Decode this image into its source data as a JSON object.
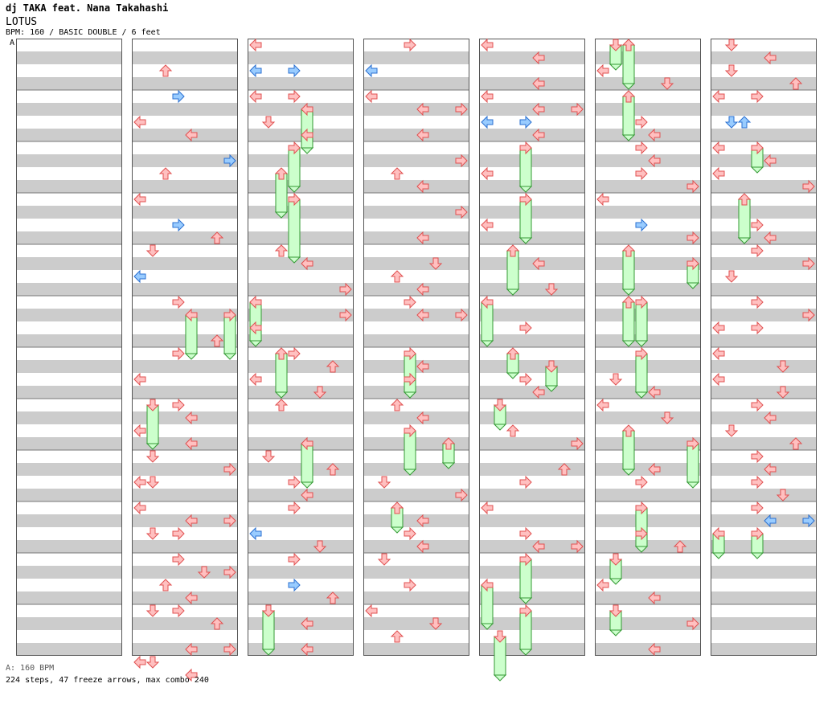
{
  "header": {
    "artist": "dj TAKA feat. Nana Takahashi",
    "song": "LOTUS",
    "info": "BPM: 160 / BASIC DOUBLE / 6 feet",
    "bpm_marker": "A"
  },
  "footer": {
    "bpm_legend": "A: 160 BPM",
    "stats": "224 steps, 47 freeze arrows, max combo 240"
  },
  "colors": {
    "stripe": "#cccccc",
    "quarter_fill": "#ffc0c0",
    "quarter_stroke": "#e05050",
    "eighth_fill": "#99ccff",
    "eighth_stroke": "#2a6fd0",
    "freeze_fill": "#ccffcc",
    "freeze_stroke": "#339933",
    "bpm_line": "#4aa3ff"
  },
  "notes": [
    {
      "c": 1,
      "t": 2,
      "d": "up",
      "k": "q"
    },
    {
      "c": 1,
      "t": 4,
      "d": "right",
      "k": "e"
    },
    {
      "c": 1,
      "t": 6,
      "d": "left",
      "k": "q"
    },
    {
      "c": 1,
      "t": 7,
      "d": "left",
      "k": "q"
    },
    {
      "c": 1,
      "t": 9,
      "d": "right",
      "k": "e"
    },
    {
      "c": 1,
      "t": 10,
      "d": "up",
      "k": "q"
    },
    {
      "c": 1,
      "t": 12,
      "d": "left",
      "k": "q"
    },
    {
      "c": 1,
      "t": 14,
      "d": "right",
      "k": "e"
    },
    {
      "c": 1,
      "t": 15,
      "d": "up",
      "k": "q"
    },
    {
      "c": 1,
      "t": 16,
      "d": "down",
      "k": "q"
    },
    {
      "c": 1,
      "t": 18,
      "d": "left",
      "k": "e"
    },
    {
      "c": 1,
      "t": 20,
      "d": "right",
      "k": "q"
    },
    {
      "c": 1,
      "t": 21,
      "d": "left",
      "k": "f",
      "len": 2
    },
    {
      "c": 1,
      "t": 21,
      "d": "right",
      "k": "f",
      "len": 2
    },
    {
      "c": 1,
      "t": 23,
      "d": "up",
      "k": "q"
    },
    {
      "c": 1,
      "t": 24,
      "d": "right",
      "k": "q"
    },
    {
      "c": 1,
      "t": 26,
      "d": "left",
      "k": "q"
    },
    {
      "c": 1,
      "t": 28,
      "d": "right",
      "k": "q"
    },
    {
      "c": 1,
      "t": 28,
      "d": "down",
      "k": "f",
      "len": 2
    },
    {
      "c": 1,
      "t": 29,
      "d": "left",
      "k": "q"
    },
    {
      "c": 1,
      "t": 30,
      "d": "left",
      "k": "q"
    },
    {
      "c": 1,
      "t": 31,
      "d": "left",
      "k": "q"
    },
    {
      "c": 1,
      "t": 32,
      "d": "down",
      "k": "q"
    },
    {
      "c": 1,
      "t": 33,
      "d": "right",
      "k": "q"
    },
    {
      "c": 1,
      "t": 34,
      "d": "down",
      "k": "q"
    },
    {
      "c": 1,
      "t": 34,
      "d": "left",
      "k": "q"
    },
    {
      "c": 1,
      "t": 36,
      "d": "left",
      "k": "q"
    },
    {
      "c": 1,
      "t": 37,
      "d": "right",
      "k": "q"
    },
    {
      "c": 1,
      "t": 37,
      "d": "left",
      "k": "q"
    },
    {
      "c": 1,
      "t": 38,
      "d": "down",
      "k": "q"
    },
    {
      "c": 1,
      "t": 38,
      "d": "right",
      "k": "q"
    },
    {
      "c": 1,
      "t": 40,
      "d": "right",
      "k": "q"
    },
    {
      "c": 1,
      "t": 41,
      "d": "down",
      "k": "q"
    },
    {
      "c": 1,
      "t": 41,
      "d": "right",
      "k": "q"
    },
    {
      "c": 1,
      "t": 42,
      "d": "up",
      "k": "q"
    },
    {
      "c": 1,
      "t": 43,
      "d": "left",
      "k": "q"
    },
    {
      "c": 1,
      "t": 44,
      "d": "down",
      "k": "q"
    },
    {
      "c": 1,
      "t": 44,
      "d": "right",
      "k": "q"
    },
    {
      "c": 1,
      "t": 45,
      "d": "up",
      "k": "q"
    },
    {
      "c": 1,
      "t": 47,
      "d": "left",
      "k": "q"
    },
    {
      "c": 1,
      "t": 47,
      "d": "right",
      "k": "q"
    },
    {
      "c": 1,
      "t": 48,
      "d": "down",
      "k": "q"
    },
    {
      "c": 1,
      "t": 48,
      "d": "left",
      "k": "q"
    },
    {
      "c": 1,
      "t": 49,
      "d": "left",
      "k": "q"
    },
    {
      "c": 2,
      "t": 0,
      "d": "left",
      "k": "q"
    },
    {
      "c": 2,
      "t": 2,
      "d": "right",
      "k": "e"
    },
    {
      "c": 2,
      "t": 2,
      "d": "left",
      "k": "e"
    },
    {
      "c": 2,
      "t": 4,
      "d": "right",
      "k": "q"
    },
    {
      "c": 2,
      "t": 4,
      "d": "left",
      "k": "q"
    },
    {
      "c": 2,
      "t": 5,
      "d": "left",
      "k": "f",
      "len": 2
    },
    {
      "c": 2,
      "t": 6,
      "d": "down",
      "k": "q"
    },
    {
      "c": 2,
      "t": 7,
      "d": "left",
      "k": "q"
    },
    {
      "c": 2,
      "t": 8,
      "d": "right",
      "k": "f",
      "len": 2
    },
    {
      "c": 2,
      "t": 10,
      "d": "up",
      "k": "f",
      "len": 2
    },
    {
      "c": 2,
      "t": 12,
      "d": "right",
      "k": "f",
      "len": 3
    },
    {
      "c": 2,
      "t": 16,
      "d": "up",
      "k": "q"
    },
    {
      "c": 2,
      "t": 17,
      "d": "left",
      "k": "q"
    },
    {
      "c": 2,
      "t": 19,
      "d": "right",
      "k": "q"
    },
    {
      "c": 2,
      "t": 20,
      "d": "left",
      "k": "f",
      "len": 2
    },
    {
      "c": 2,
      "t": 21,
      "d": "right",
      "k": "q"
    },
    {
      "c": 2,
      "t": 22,
      "d": "left",
      "k": "q"
    },
    {
      "c": 2,
      "t": 24,
      "d": "up",
      "k": "f",
      "len": 2
    },
    {
      "c": 2,
      "t": 24,
      "d": "right",
      "k": "q"
    },
    {
      "c": 2,
      "t": 25,
      "d": "up",
      "k": "q"
    },
    {
      "c": 2,
      "t": 26,
      "d": "left",
      "k": "q"
    },
    {
      "c": 2,
      "t": 27,
      "d": "down",
      "k": "q"
    },
    {
      "c": 2,
      "t": 28,
      "d": "up",
      "k": "q"
    },
    {
      "c": 2,
      "t": 31,
      "d": "left",
      "k": "f",
      "len": 2
    },
    {
      "c": 2,
      "t": 32,
      "d": "down",
      "k": "q"
    },
    {
      "c": 2,
      "t": 33,
      "d": "up",
      "k": "q"
    },
    {
      "c": 2,
      "t": 34,
      "d": "right",
      "k": "q"
    },
    {
      "c": 2,
      "t": 35,
      "d": "left",
      "k": "q"
    },
    {
      "c": 2,
      "t": 36,
      "d": "right",
      "k": "q"
    },
    {
      "c": 2,
      "t": 38,
      "d": "left",
      "k": "e"
    },
    {
      "c": 2,
      "t": 39,
      "d": "down",
      "k": "q"
    },
    {
      "c": 2,
      "t": 40,
      "d": "right",
      "k": "q"
    },
    {
      "c": 2,
      "t": 42,
      "d": "right",
      "k": "e"
    },
    {
      "c": 2,
      "t": 43,
      "d": "up",
      "k": "q"
    },
    {
      "c": 2,
      "t": 44,
      "d": "down",
      "k": "f",
      "len": 2
    },
    {
      "c": 2,
      "t": 45,
      "d": "left",
      "k": "q"
    },
    {
      "c": 2,
      "t": 47,
      "d": "left",
      "k": "q"
    },
    {
      "c": 3,
      "t": 0,
      "d": "right",
      "k": "q"
    },
    {
      "c": 3,
      "t": 2,
      "d": "left",
      "k": "e"
    },
    {
      "c": 3,
      "t": 4,
      "d": "left",
      "k": "q"
    },
    {
      "c": 3,
      "t": 5,
      "d": "right",
      "k": "q"
    },
    {
      "c": 3,
      "t": 5,
      "d": "left",
      "k": "q"
    },
    {
      "c": 3,
      "t": 7,
      "d": "left",
      "k": "q"
    },
    {
      "c": 3,
      "t": 9,
      "d": "right",
      "k": "q"
    },
    {
      "c": 3,
      "t": 10,
      "d": "up",
      "k": "q"
    },
    {
      "c": 3,
      "t": 11,
      "d": "left",
      "k": "q"
    },
    {
      "c": 3,
      "t": 13,
      "d": "right",
      "k": "q"
    },
    {
      "c": 3,
      "t": 15,
      "d": "left",
      "k": "q"
    },
    {
      "c": 3,
      "t": 17,
      "d": "down",
      "k": "q"
    },
    {
      "c": 3,
      "t": 18,
      "d": "up",
      "k": "q"
    },
    {
      "c": 3,
      "t": 19,
      "d": "left",
      "k": "q"
    },
    {
      "c": 3,
      "t": 20,
      "d": "right",
      "k": "q"
    },
    {
      "c": 3,
      "t": 21,
      "d": "right",
      "k": "q"
    },
    {
      "c": 3,
      "t": 21,
      "d": "left",
      "k": "q"
    },
    {
      "c": 3,
      "t": 24,
      "d": "right",
      "k": "f",
      "len": 2
    },
    {
      "c": 3,
      "t": 25,
      "d": "left",
      "k": "q"
    },
    {
      "c": 3,
      "t": 26,
      "d": "right",
      "k": "q"
    },
    {
      "c": 3,
      "t": 28,
      "d": "up",
      "k": "q"
    },
    {
      "c": 3,
      "t": 29,
      "d": "left",
      "k": "q"
    },
    {
      "c": 3,
      "t": 30,
      "d": "right",
      "k": "f",
      "len": 2
    },
    {
      "c": 3,
      "t": 31,
      "d": "up",
      "k": "f",
      "len": 1
    },
    {
      "c": 3,
      "t": 34,
      "d": "down",
      "k": "q"
    },
    {
      "c": 3,
      "t": 35,
      "d": "right",
      "k": "q"
    },
    {
      "c": 3,
      "t": 36,
      "d": "up",
      "k": "f",
      "len": 1
    },
    {
      "c": 3,
      "t": 37,
      "d": "left",
      "k": "q"
    },
    {
      "c": 3,
      "t": 38,
      "d": "right",
      "k": "q"
    },
    {
      "c": 3,
      "t": 39,
      "d": "left",
      "k": "q"
    },
    {
      "c": 3,
      "t": 40,
      "d": "down",
      "k": "q"
    },
    {
      "c": 3,
      "t": 42,
      "d": "right",
      "k": "q"
    },
    {
      "c": 3,
      "t": 44,
      "d": "left",
      "k": "q"
    },
    {
      "c": 3,
      "t": 45,
      "d": "down",
      "k": "q"
    },
    {
      "c": 3,
      "t": 46,
      "d": "up",
      "k": "q"
    },
    {
      "c": 4,
      "t": 0,
      "d": "left",
      "k": "q"
    },
    {
      "c": 4,
      "t": 1,
      "d": "left",
      "k": "q"
    },
    {
      "c": 4,
      "t": 3,
      "d": "left",
      "k": "q"
    },
    {
      "c": 4,
      "t": 4,
      "d": "left",
      "k": "q"
    },
    {
      "c": 4,
      "t": 5,
      "d": "right",
      "k": "q"
    },
    {
      "c": 4,
      "t": 5,
      "d": "left",
      "k": "q"
    },
    {
      "c": 4,
      "t": 6,
      "d": "right",
      "k": "e"
    },
    {
      "c": 4,
      "t": 6,
      "d": "left",
      "k": "e"
    },
    {
      "c": 4,
      "t": 7,
      "d": "left",
      "k": "q"
    },
    {
      "c": 4,
      "t": 8,
      "d": "right",
      "k": "f",
      "len": 2
    },
    {
      "c": 4,
      "t": 10,
      "d": "left",
      "k": "q"
    },
    {
      "c": 4,
      "t": 12,
      "d": "right",
      "k": "f",
      "len": 2
    },
    {
      "c": 4,
      "t": 14,
      "d": "left",
      "k": "q"
    },
    {
      "c": 4,
      "t": 16,
      "d": "up",
      "k": "f",
      "len": 2
    },
    {
      "c": 4,
      "t": 17,
      "d": "left",
      "k": "q"
    },
    {
      "c": 4,
      "t": 19,
      "d": "down",
      "k": "q"
    },
    {
      "c": 4,
      "t": 20,
      "d": "left",
      "k": "f",
      "len": 2
    },
    {
      "c": 4,
      "t": 22,
      "d": "right",
      "k": "q"
    },
    {
      "c": 4,
      "t": 24,
      "d": "up",
      "k": "f",
      "len": 1
    },
    {
      "c": 4,
      "t": 25,
      "d": "down",
      "k": "f",
      "len": 1
    },
    {
      "c": 4,
      "t": 26,
      "d": "right",
      "k": "q"
    },
    {
      "c": 4,
      "t": 27,
      "d": "left",
      "k": "q"
    },
    {
      "c": 4,
      "t": 28,
      "d": "down",
      "k": "f",
      "len": 1
    },
    {
      "c": 4,
      "t": 30,
      "d": "up",
      "k": "q"
    },
    {
      "c": 4,
      "t": 31,
      "d": "right",
      "k": "q"
    },
    {
      "c": 4,
      "t": 33,
      "d": "up",
      "k": "q"
    },
    {
      "c": 4,
      "t": 34,
      "d": "right",
      "k": "q"
    },
    {
      "c": 4,
      "t": 36,
      "d": "left",
      "k": "q"
    },
    {
      "c": 4,
      "t": 38,
      "d": "right",
      "k": "q"
    },
    {
      "c": 4,
      "t": 39,
      "d": "right",
      "k": "q"
    },
    {
      "c": 4,
      "t": 39,
      "d": "left",
      "k": "q"
    },
    {
      "c": 4,
      "t": 40,
      "d": "right",
      "k": "f",
      "len": 2
    },
    {
      "c": 4,
      "t": 42,
      "d": "left",
      "k": "f",
      "len": 2
    },
    {
      "c": 4,
      "t": 44,
      "d": "right",
      "k": "f",
      "len": 2
    },
    {
      "c": 4,
      "t": 46,
      "d": "down",
      "k": "f",
      "len": 2
    },
    {
      "c": 5,
      "t": 0,
      "d": "down",
      "k": "f",
      "len": 0
    },
    {
      "c": 5,
      "t": 0,
      "d": "up",
      "k": "f",
      "len": 2
    },
    {
      "c": 5,
      "t": 2,
      "d": "left",
      "k": "q"
    },
    {
      "c": 5,
      "t": 3,
      "d": "down",
      "k": "q"
    },
    {
      "c": 5,
      "t": 4,
      "d": "up",
      "k": "f",
      "len": 2
    },
    {
      "c": 5,
      "t": 6,
      "d": "right",
      "k": "q"
    },
    {
      "c": 5,
      "t": 7,
      "d": "left",
      "k": "q"
    },
    {
      "c": 5,
      "t": 8,
      "d": "right",
      "k": "q"
    },
    {
      "c": 5,
      "t": 9,
      "d": "left",
      "k": "q"
    },
    {
      "c": 5,
      "t": 10,
      "d": "right",
      "k": "q"
    },
    {
      "c": 5,
      "t": 11,
      "d": "right",
      "k": "q"
    },
    {
      "c": 5,
      "t": 12,
      "d": "left",
      "k": "q"
    },
    {
      "c": 5,
      "t": 14,
      "d": "right",
      "k": "e"
    },
    {
      "c": 5,
      "t": 15,
      "d": "right",
      "k": "q"
    },
    {
      "c": 5,
      "t": 16,
      "d": "up",
      "k": "f",
      "len": 2
    },
    {
      "c": 5,
      "t": 17,
      "d": "right",
      "k": "f",
      "len": 1
    },
    {
      "c": 5,
      "t": 20,
      "d": "up",
      "k": "f",
      "len": 2
    },
    {
      "c": 5,
      "t": 20,
      "d": "right",
      "k": "f",
      "len": 2
    },
    {
      "c": 5,
      "t": 24,
      "d": "right",
      "k": "f",
      "len": 2
    },
    {
      "c": 5,
      "t": 26,
      "d": "down",
      "k": "q"
    },
    {
      "c": 5,
      "t": 27,
      "d": "left",
      "k": "q"
    },
    {
      "c": 5,
      "t": 28,
      "d": "left",
      "k": "q"
    },
    {
      "c": 5,
      "t": 29,
      "d": "down",
      "k": "q"
    },
    {
      "c": 5,
      "t": 30,
      "d": "up",
      "k": "f",
      "len": 2
    },
    {
      "c": 5,
      "t": 31,
      "d": "right",
      "k": "f",
      "len": 2
    },
    {
      "c": 5,
      "t": 33,
      "d": "left",
      "k": "q"
    },
    {
      "c": 5,
      "t": 34,
      "d": "right",
      "k": "q"
    },
    {
      "c": 5,
      "t": 36,
      "d": "right",
      "k": "f",
      "len": 2
    },
    {
      "c": 5,
      "t": 38,
      "d": "right",
      "k": "q"
    },
    {
      "c": 5,
      "t": 39,
      "d": "up",
      "k": "q"
    },
    {
      "c": 5,
      "t": 40,
      "d": "down",
      "k": "f",
      "len": 1
    },
    {
      "c": 5,
      "t": 42,
      "d": "left",
      "k": "q"
    },
    {
      "c": 5,
      "t": 43,
      "d": "left",
      "k": "q"
    },
    {
      "c": 5,
      "t": 44,
      "d": "down",
      "k": "f",
      "len": 1
    },
    {
      "c": 5,
      "t": 45,
      "d": "right",
      "k": "q"
    },
    {
      "c": 5,
      "t": 47,
      "d": "left",
      "k": "q"
    },
    {
      "c": 6,
      "t": 0,
      "d": "down",
      "k": "q"
    },
    {
      "c": 6,
      "t": 1,
      "d": "left",
      "k": "q"
    },
    {
      "c": 6,
      "t": 2,
      "d": "down",
      "k": "q"
    },
    {
      "c": 6,
      "t": 3,
      "d": "up",
      "k": "q"
    },
    {
      "c": 6,
      "t": 4,
      "d": "right",
      "k": "q"
    },
    {
      "c": 6,
      "t": 4,
      "d": "left",
      "k": "q"
    },
    {
      "c": 6,
      "t": 6,
      "d": "down",
      "k": "e"
    },
    {
      "c": 6,
      "t": 6,
      "d": "up",
      "k": "e"
    },
    {
      "c": 6,
      "t": 8,
      "d": "left",
      "k": "q"
    },
    {
      "c": 6,
      "t": 8,
      "d": "right",
      "k": "f",
      "len": 1
    },
    {
      "c": 6,
      "t": 9,
      "d": "left",
      "k": "q"
    },
    {
      "c": 6,
      "t": 10,
      "d": "left",
      "k": "q"
    },
    {
      "c": 6,
      "t": 11,
      "d": "right",
      "k": "q"
    },
    {
      "c": 6,
      "t": 12,
      "d": "up",
      "k": "f",
      "len": 2
    },
    {
      "c": 6,
      "t": 14,
      "d": "right",
      "k": "q"
    },
    {
      "c": 6,
      "t": 15,
      "d": "left",
      "k": "q"
    },
    {
      "c": 6,
      "t": 16,
      "d": "right",
      "k": "q"
    },
    {
      "c": 6,
      "t": 17,
      "d": "right",
      "k": "q"
    },
    {
      "c": 6,
      "t": 18,
      "d": "down",
      "k": "q"
    },
    {
      "c": 6,
      "t": 20,
      "d": "right",
      "k": "q"
    },
    {
      "c": 6,
      "t": 21,
      "d": "right",
      "k": "q"
    },
    {
      "c": 6,
      "t": 21,
      "d": "right",
      "k": "q"
    },
    {
      "c": 6,
      "t": 22,
      "d": "right",
      "k": "q"
    },
    {
      "c": 6,
      "t": 22,
      "d": "left",
      "k": "q"
    },
    {
      "c": 6,
      "t": 24,
      "d": "left",
      "k": "q"
    },
    {
      "c": 6,
      "t": 25,
      "d": "down",
      "k": "q"
    },
    {
      "c": 6,
      "t": 26,
      "d": "left",
      "k": "q"
    },
    {
      "c": 6,
      "t": 27,
      "d": "down",
      "k": "q"
    },
    {
      "c": 6,
      "t": 28,
      "d": "right",
      "k": "q"
    },
    {
      "c": 6,
      "t": 29,
      "d": "left",
      "k": "q"
    },
    {
      "c": 6,
      "t": 30,
      "d": "down",
      "k": "q"
    },
    {
      "c": 6,
      "t": 31,
      "d": "up",
      "k": "q"
    },
    {
      "c": 6,
      "t": 32,
      "d": "right",
      "k": "q"
    },
    {
      "c": 6,
      "t": 33,
      "d": "left",
      "k": "q"
    },
    {
      "c": 6,
      "t": 34,
      "d": "right",
      "k": "q"
    },
    {
      "c": 6,
      "t": 35,
      "d": "down",
      "k": "q"
    },
    {
      "c": 6,
      "t": 36,
      "d": "right",
      "k": "q"
    },
    {
      "c": 6,
      "t": 37,
      "d": "right",
      "k": "e"
    },
    {
      "c": 6,
      "t": 37,
      "d": "left",
      "k": "e"
    },
    {
      "c": 6,
      "t": 38,
      "d": "right",
      "k": "f",
      "len": 1
    },
    {
      "c": 6,
      "t": 38,
      "d": "left",
      "k": "f",
      "len": 1
    }
  ]
}
